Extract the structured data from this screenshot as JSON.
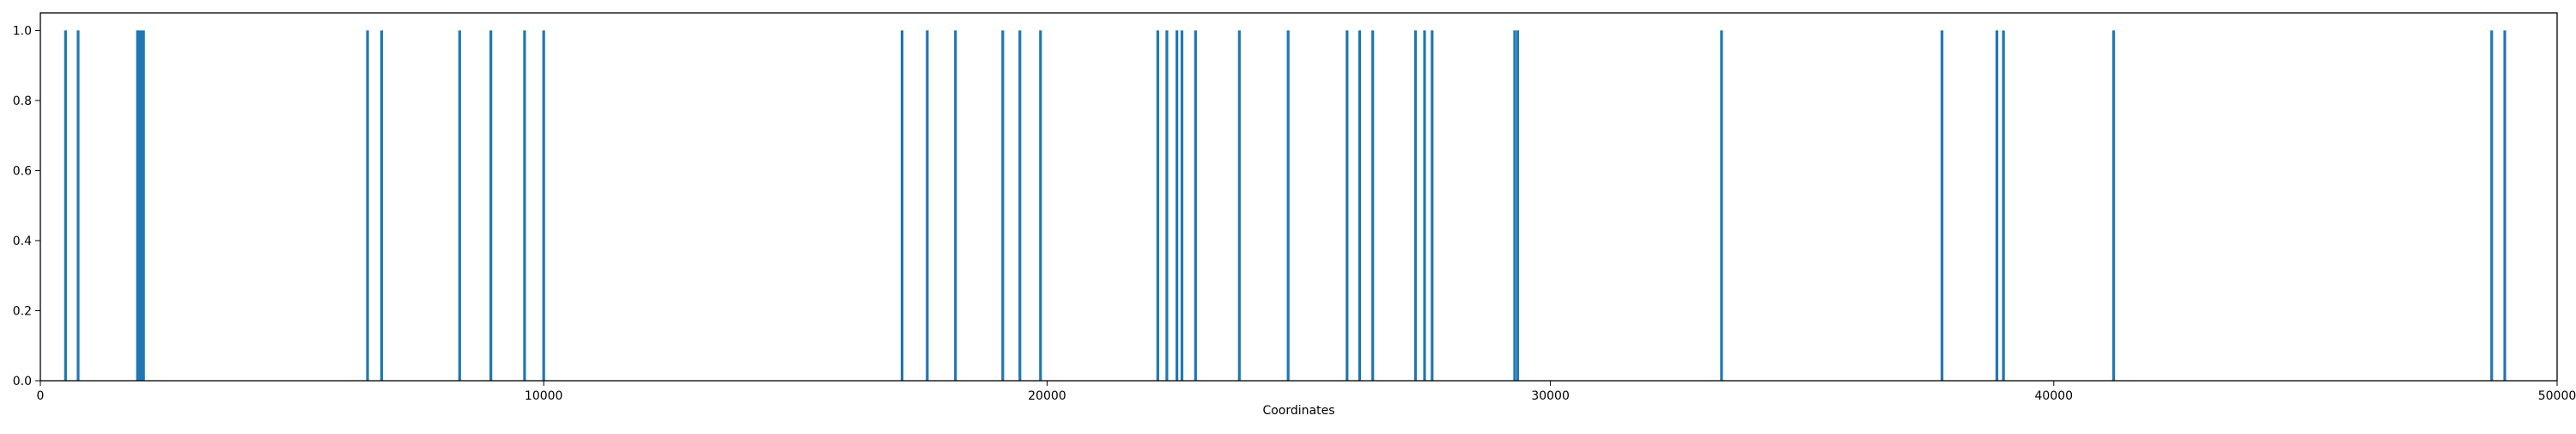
{
  "chart_data": {
    "type": "bar",
    "title": "",
    "xlabel": "Coordinates",
    "ylabel": "",
    "xlim": [
      0,
      50000
    ],
    "ylim": [
      0,
      1.05
    ],
    "grid": false,
    "x_ticks": [
      0,
      10000,
      20000,
      30000,
      40000,
      50000
    ],
    "x_tick_labels": [
      "0",
      "10000",
      "20000",
      "30000",
      "40000",
      "50000"
    ],
    "y_ticks": [
      0.0,
      0.2,
      0.4,
      0.6,
      0.8,
      1.0
    ],
    "y_tick_labels": [
      "0.0",
      "0.2",
      "0.4",
      "0.6",
      "0.8",
      "1.0"
    ],
    "bar_color": "#1f77b4",
    "x": [
      500,
      750,
      1930,
      1960,
      2000,
      2050,
      6500,
      6780,
      8330,
      8950,
      9620,
      10000,
      17120,
      17620,
      18180,
      19120,
      19460,
      19870,
      22200,
      22380,
      22580,
      22680,
      22950,
      23820,
      24790,
      25960,
      26210,
      26470,
      27320,
      27500,
      27650,
      29290,
      29350,
      33400,
      37780,
      38870,
      39000,
      41190,
      48700,
      48960
    ],
    "values": [
      1,
      1,
      1,
      1,
      1,
      1,
      1,
      1,
      1,
      1,
      1,
      1,
      1,
      1,
      1,
      1,
      1,
      1,
      1,
      1,
      1,
      1,
      1,
      1,
      1,
      1,
      1,
      1,
      1,
      1,
      1,
      1,
      1,
      1,
      1,
      1,
      1,
      1,
      1,
      1
    ]
  }
}
